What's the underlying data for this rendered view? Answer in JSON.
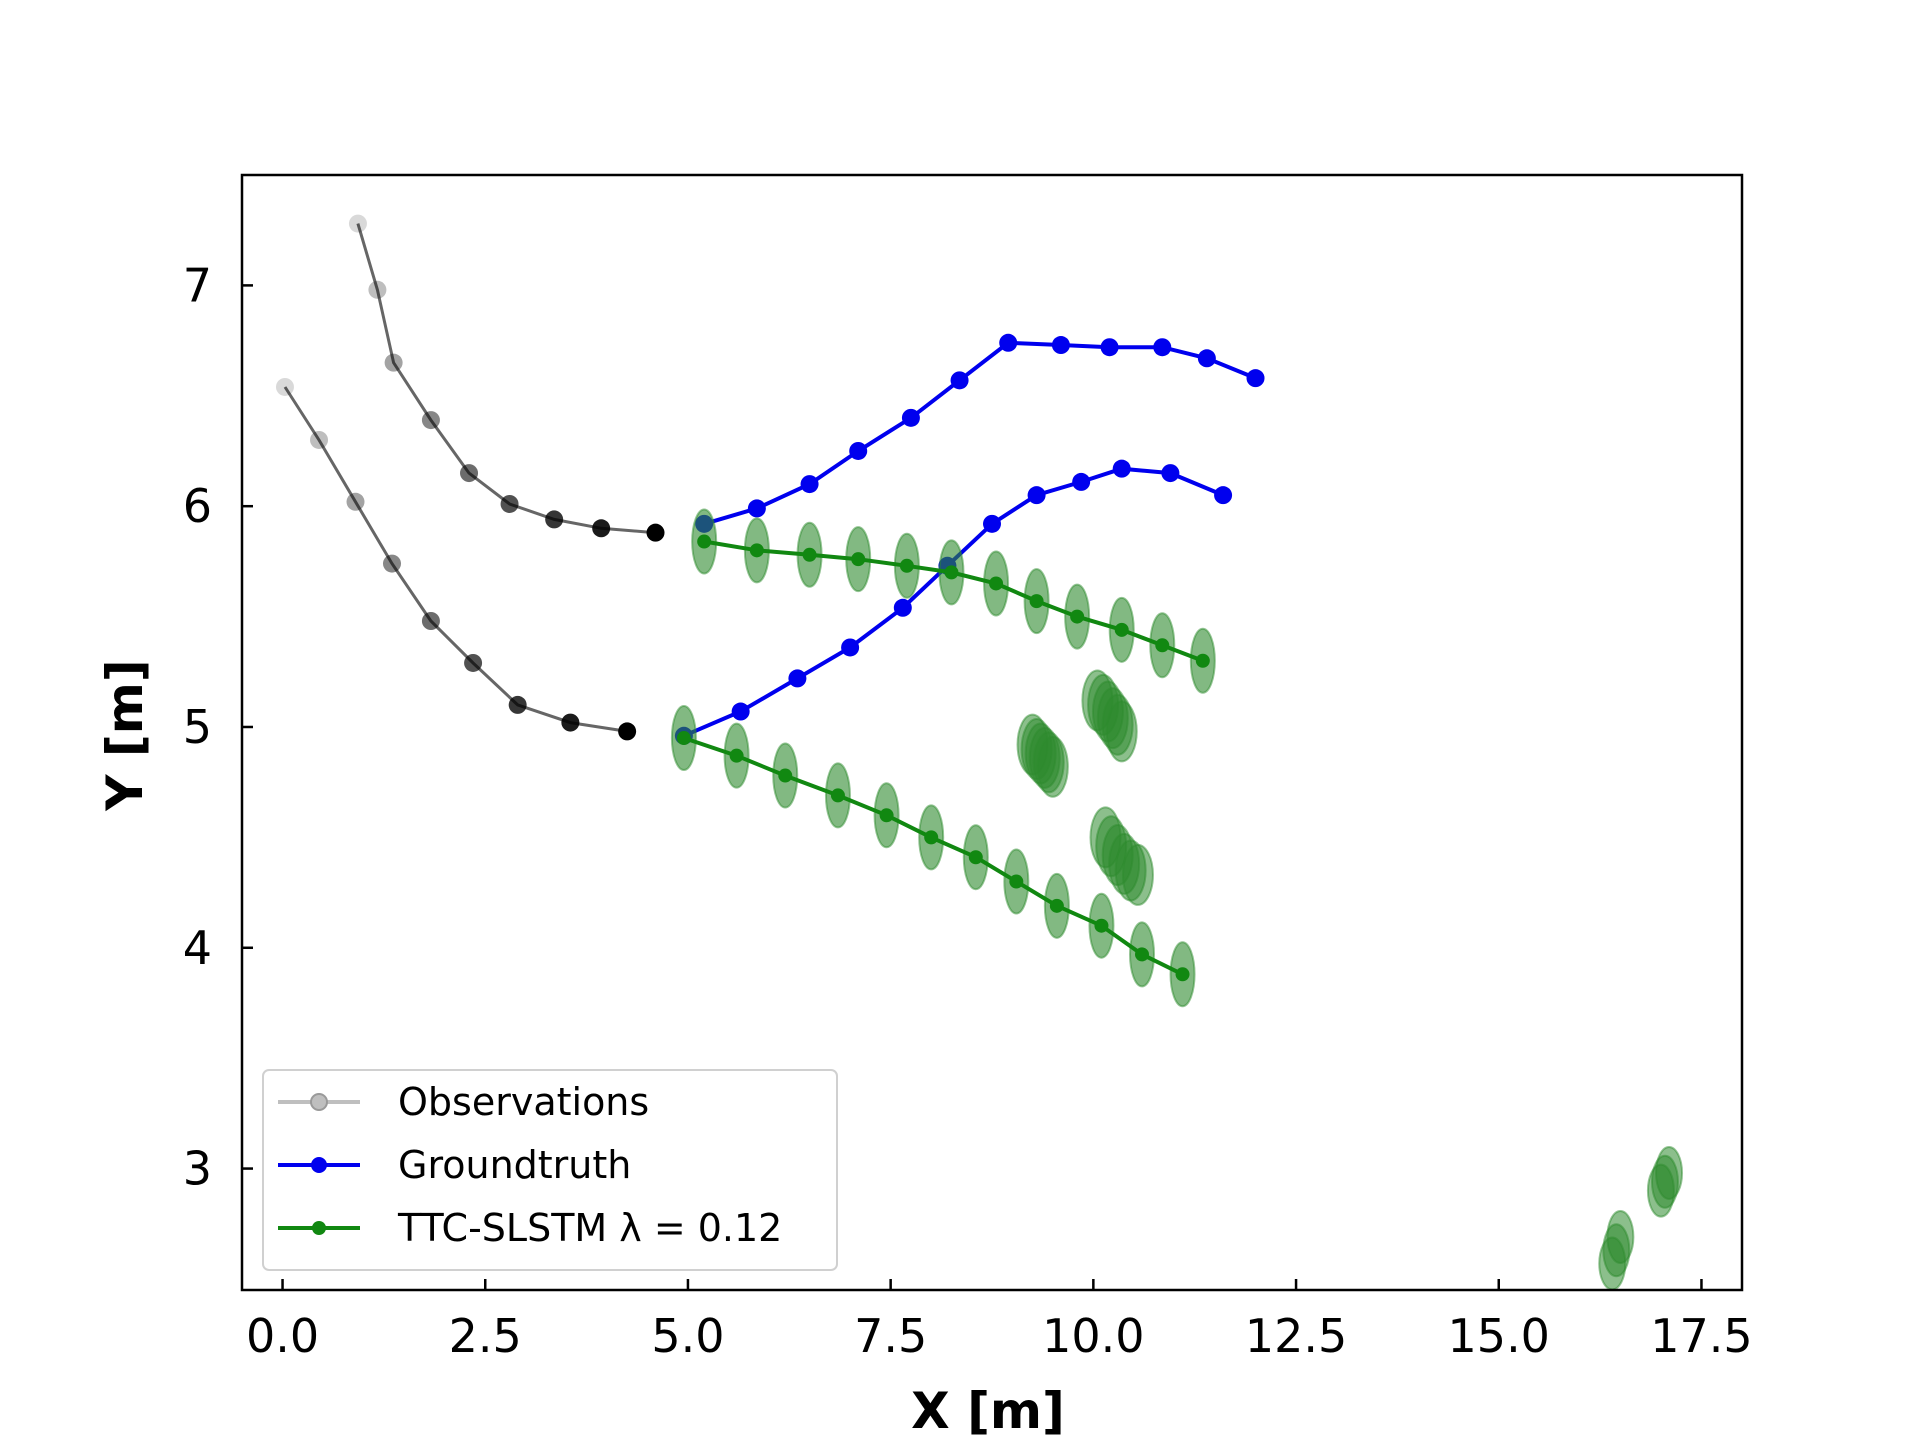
{
  "chart_data": {
    "type": "line",
    "title": "",
    "xlabel": "X [m]",
    "ylabel": "Y [m]",
    "xlim": [
      -0.5,
      18.0
    ],
    "ylim": [
      2.45,
      7.5
    ],
    "xticks": [
      0.0,
      2.5,
      5.0,
      7.5,
      10.0,
      12.5,
      15.0,
      17.5
    ],
    "xtick_labels": [
      "0.0",
      "2.5",
      "5.0",
      "7.5",
      "10.0",
      "12.5",
      "15.0",
      "17.5"
    ],
    "yticks": [
      3,
      4,
      5,
      6,
      7
    ],
    "ytick_labels": [
      "3",
      "4",
      "5",
      "6",
      "7"
    ],
    "grid": false,
    "legend_position": "lower-left",
    "legend": [
      {
        "label": "Observations",
        "color": "#bfbfbf"
      },
      {
        "label": "Groundtruth",
        "color": "#0000ee"
      },
      {
        "label": "TTC-SLSTM λ = 0.12",
        "color": "#118811"
      }
    ],
    "colors": {
      "observations": "#000000",
      "groundtruth": "#0000ee",
      "prediction": "#118811",
      "prediction_fill": "#2e8b2e"
    },
    "series": [
      {
        "name": "Observations",
        "agent": 1,
        "points": [
          [
            0.93,
            7.28
          ],
          [
            1.17,
            6.98
          ],
          [
            1.37,
            6.65
          ],
          [
            1.83,
            6.39
          ],
          [
            2.3,
            6.15
          ],
          [
            2.8,
            6.01
          ],
          [
            3.35,
            5.94
          ],
          [
            3.93,
            5.9
          ],
          [
            4.6,
            5.88
          ]
        ]
      },
      {
        "name": "Observations",
        "agent": 2,
        "points": [
          [
            0.03,
            6.54
          ],
          [
            0.45,
            6.3
          ],
          [
            0.9,
            6.02
          ],
          [
            1.35,
            5.74
          ],
          [
            1.83,
            5.48
          ],
          [
            2.35,
            5.29
          ],
          [
            2.9,
            5.1
          ],
          [
            3.55,
            5.02
          ],
          [
            4.25,
            4.98
          ]
        ]
      },
      {
        "name": "Groundtruth",
        "agent": 1,
        "points": [
          [
            5.2,
            5.92
          ],
          [
            5.85,
            5.99
          ],
          [
            6.5,
            6.1
          ],
          [
            7.1,
            6.25
          ],
          [
            7.75,
            6.4
          ],
          [
            8.35,
            6.57
          ],
          [
            8.95,
            6.74
          ],
          [
            9.6,
            6.73
          ],
          [
            10.2,
            6.72
          ],
          [
            10.85,
            6.72
          ],
          [
            11.4,
            6.67
          ],
          [
            12.0,
            6.58
          ]
        ]
      },
      {
        "name": "Groundtruth",
        "agent": 2,
        "points": [
          [
            4.95,
            4.96
          ],
          [
            5.65,
            5.07
          ],
          [
            6.35,
            5.22
          ],
          [
            7.0,
            5.36
          ],
          [
            7.65,
            5.54
          ],
          [
            8.2,
            5.73
          ],
          [
            8.75,
            5.92
          ],
          [
            9.3,
            6.05
          ],
          [
            9.85,
            6.11
          ],
          [
            10.35,
            6.17
          ],
          [
            10.95,
            6.15
          ],
          [
            11.6,
            6.05
          ]
        ]
      },
      {
        "name": "TTC-SLSTM λ = 0.12",
        "agent": 1,
        "points": [
          [
            5.2,
            5.84
          ],
          [
            5.85,
            5.8
          ],
          [
            6.5,
            5.78
          ],
          [
            7.1,
            5.76
          ],
          [
            7.7,
            5.73
          ],
          [
            8.25,
            5.7
          ],
          [
            8.8,
            5.65
          ],
          [
            9.3,
            5.57
          ],
          [
            9.8,
            5.5
          ],
          [
            10.35,
            5.44
          ],
          [
            10.85,
            5.37
          ],
          [
            11.35,
            5.3
          ]
        ]
      },
      {
        "name": "TTC-SLSTM λ = 0.12",
        "agent": 2,
        "points": [
          [
            4.95,
            4.95
          ],
          [
            5.6,
            4.87
          ],
          [
            6.2,
            4.78
          ],
          [
            6.85,
            4.69
          ],
          [
            7.45,
            4.6
          ],
          [
            8.0,
            4.5
          ],
          [
            8.55,
            4.41
          ],
          [
            9.05,
            4.3
          ],
          [
            9.55,
            4.19
          ],
          [
            10.1,
            4.1
          ],
          [
            10.6,
            3.97
          ],
          [
            11.1,
            3.88
          ]
        ]
      },
      {
        "name": "TTC-SLSTM λ = 0.12",
        "agent": 3,
        "points": [
          [
            9.25,
            4.92
          ],
          [
            9.3,
            4.9
          ],
          [
            9.35,
            4.88
          ],
          [
            9.4,
            4.86
          ],
          [
            9.45,
            4.84
          ],
          [
            9.5,
            4.82
          ]
        ]
      },
      {
        "name": "TTC-SLSTM λ = 0.12",
        "agent": 4,
        "points": [
          [
            10.05,
            5.12
          ],
          [
            10.12,
            5.1
          ],
          [
            10.18,
            5.07
          ],
          [
            10.24,
            5.04
          ],
          [
            10.3,
            5.01
          ],
          [
            10.35,
            4.98
          ]
        ]
      },
      {
        "name": "TTC-SLSTM λ = 0.12",
        "agent": 5,
        "points": [
          [
            10.15,
            4.5
          ],
          [
            10.22,
            4.46
          ],
          [
            10.3,
            4.42
          ],
          [
            10.38,
            4.38
          ],
          [
            10.46,
            4.35
          ],
          [
            10.55,
            4.33
          ]
        ]
      },
      {
        "name": "TTC-SLSTM λ = 0.12",
        "agent": 6,
        "points": [
          [
            17.1,
            2.98
          ],
          [
            17.05,
            2.94
          ],
          [
            17.0,
            2.9
          ],
          [
            16.5,
            2.69
          ],
          [
            16.45,
            2.63
          ],
          [
            16.4,
            2.57
          ]
        ]
      }
    ]
  }
}
